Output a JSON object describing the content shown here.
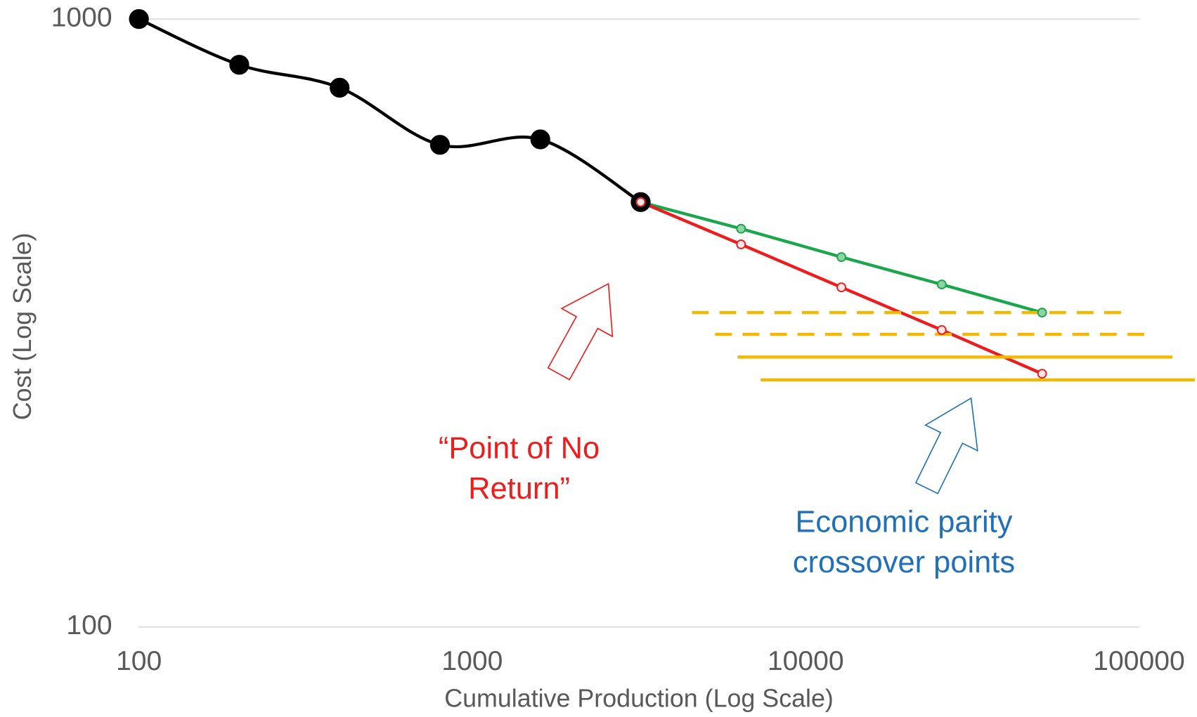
{
  "chart_data": {
    "type": "line",
    "x_label": "Cumulative Production (Log Scale)",
    "y_label": "Cost (Log Scale)",
    "xscale": "log",
    "yscale": "log",
    "xlim": [
      100,
      100000
    ],
    "xticks": [
      100,
      1000,
      10000,
      100000
    ],
    "ylim": [
      100,
      1000
    ],
    "yticks": [
      100,
      1000
    ],
    "grid": true,
    "series": [
      {
        "color": "#000000",
        "marker": "large",
        "smooth": true,
        "x": [
          100,
          200,
          400,
          800,
          1600,
          3200
        ],
        "values": [
          1000,
          841,
          771,
          621,
          634,
          500
        ]
      },
      {
        "color": "#1aa64a",
        "marker": "small",
        "marker_fill": "#8fd3a3",
        "x": [
          3200,
          6400,
          12800,
          25600,
          51200
        ],
        "values": [
          500,
          452,
          406,
          366,
          329
        ]
      },
      {
        "color": "#ee1c1c",
        "marker": "small",
        "marker_fill": "#ffe6e6",
        "x": [
          3200,
          6400,
          12800,
          25600,
          51200
        ],
        "values": [
          500,
          426,
          362,
          308,
          261
        ]
      },
      {
        "color": "#f5b800",
        "style": "dashed",
        "x": [
          4560,
          91900
        ],
        "values": [
          329,
          329
        ]
      },
      {
        "color": "#f5b800",
        "style": "dashed",
        "x": [
          5350,
          107700
        ],
        "values": [
          303,
          303
        ]
      },
      {
        "color": "#f5b800",
        "style": "solid",
        "x": [
          6250,
          126000
        ],
        "values": [
          278,
          278
        ]
      },
      {
        "color": "#f5b800",
        "style": "solid",
        "x": [
          7330,
          147000
        ],
        "values": [
          255,
          255
        ]
      }
    ],
    "annotations": [
      {
        "lines": [
          "“Point of No",
          "Return”"
        ],
        "color": "#ee1c1c"
      },
      {
        "lines": [
          "Economic parity",
          "crossover points"
        ],
        "color": "#1f70b8"
      }
    ]
  }
}
